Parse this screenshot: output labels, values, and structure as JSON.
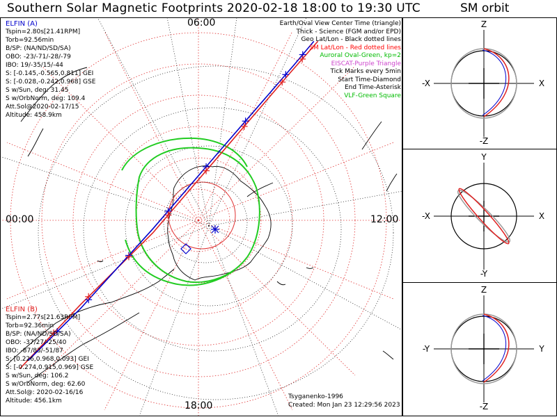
{
  "title": "Southern Solar Magnetic Footprints 2020-02-18 18:00 to 19:30 UTC",
  "sm_title": "SM orbit",
  "main_plot": {
    "labels": {
      "top": "06:00",
      "bottom": "18:00",
      "left": "00:00",
      "right": "12:00"
    },
    "elfin_a": {
      "name": "ELFIN (A)",
      "color": "#0000cc",
      "info": [
        "Tspin=2.80s[21.41RPM]",
        "Torb=92.56min",
        "B/SP: (NA/ND/SD/SA)",
        "OBO: -23/-71/-28/-79",
        "IBO: 19/-35/15/-44",
        "S: [-0.145,-0.565,0.811] GEI",
        "S: [-0.028,-0.242,0.968] GSE",
        "S w/Sun, deg: 31.45",
        "S w/OrbNorm, deg: 109.4",
        "Att.Sol@2020-02-17/15",
        "Altitude: 458.9km"
      ]
    },
    "elfin_b": {
      "name": "ELFIN (B)",
      "color": "#e02020",
      "info": [
        "Tspin=2.77s[21.63RPM]",
        "Torb=92.36min",
        "B/SP: (NA/ND/SD/SA)",
        "OBO: -37/27/-25/40",
        "IBO: -87/83/-51/87",
        "S: [0.226,0.968,0.093] GEI",
        "S: [-0.274,0.915,0.969] GSE",
        "S w/Sun, deg: 106.2",
        "S w/OrbNorm, deg: 62.60",
        "Att.Sol@: 2020-02-16/16",
        "Altitude: 456.1km"
      ]
    },
    "legend": [
      {
        "text": "Earth/Oval View Center Time (triangle)",
        "color": "#000000"
      },
      {
        "text": "Thick - Science (FGM and/or EPD)",
        "color": "#000000"
      },
      {
        "text": "Geo Lat/Lon - Black dotted lines",
        "color": "#000000"
      },
      {
        "text": "SM Lat/Lon - Red dotted lines",
        "color": "#ff0000"
      },
      {
        "text": "Auroral Oval-Green, kp=2",
        "color": "#00bb00"
      },
      {
        "text": "EISCAT-Purple Triangle",
        "color": "#cc44cc"
      },
      {
        "text": "Tick Marks every 5min",
        "color": "#000000"
      },
      {
        "text": "Start Time-Diamond",
        "color": "#000000"
      },
      {
        "text": "End Time-Asterisk",
        "color": "#000000"
      },
      {
        "text": "VLF-Green Square",
        "color": "#00bb00"
      }
    ],
    "footer": {
      "model": "Tsyganenko-1996",
      "created": "Created: Mon Jan 23 12:29:56 2023"
    }
  },
  "chart_data": [
    {
      "type": "line",
      "name": "Southern magnetic footprint tracks (polar projection)",
      "series": [
        {
          "name": "ELFIN (A)",
          "color": "#0000cc",
          "path_norm": [
            [
              0.07,
              0.86
            ],
            [
              0.2,
              0.73
            ],
            [
              0.38,
              0.53
            ],
            [
              0.55,
              0.33
            ],
            [
              0.73,
              0.12
            ],
            [
              0.78,
              0.06
            ]
          ]
        },
        {
          "name": "ELFIN (B)",
          "color": "#e02020",
          "path_norm": [
            [
              0.05,
              0.88
            ],
            [
              0.2,
              0.72
            ],
            [
              0.38,
              0.54
            ],
            [
              0.55,
              0.34
            ],
            [
              0.72,
              0.14
            ],
            [
              0.79,
              0.06
            ]
          ]
        }
      ],
      "oval_color": "#00bb00"
    },
    {
      "type": "scatter",
      "panels": [
        {
          "axes": [
            "Z",
            "-Z",
            "-X",
            "X"
          ]
        },
        {
          "axes": [
            "Y",
            "-Y",
            "-X",
            "X"
          ]
        },
        {
          "axes": [
            "Z",
            "-Z",
            "-Y",
            "Y"
          ]
        }
      ]
    }
  ]
}
